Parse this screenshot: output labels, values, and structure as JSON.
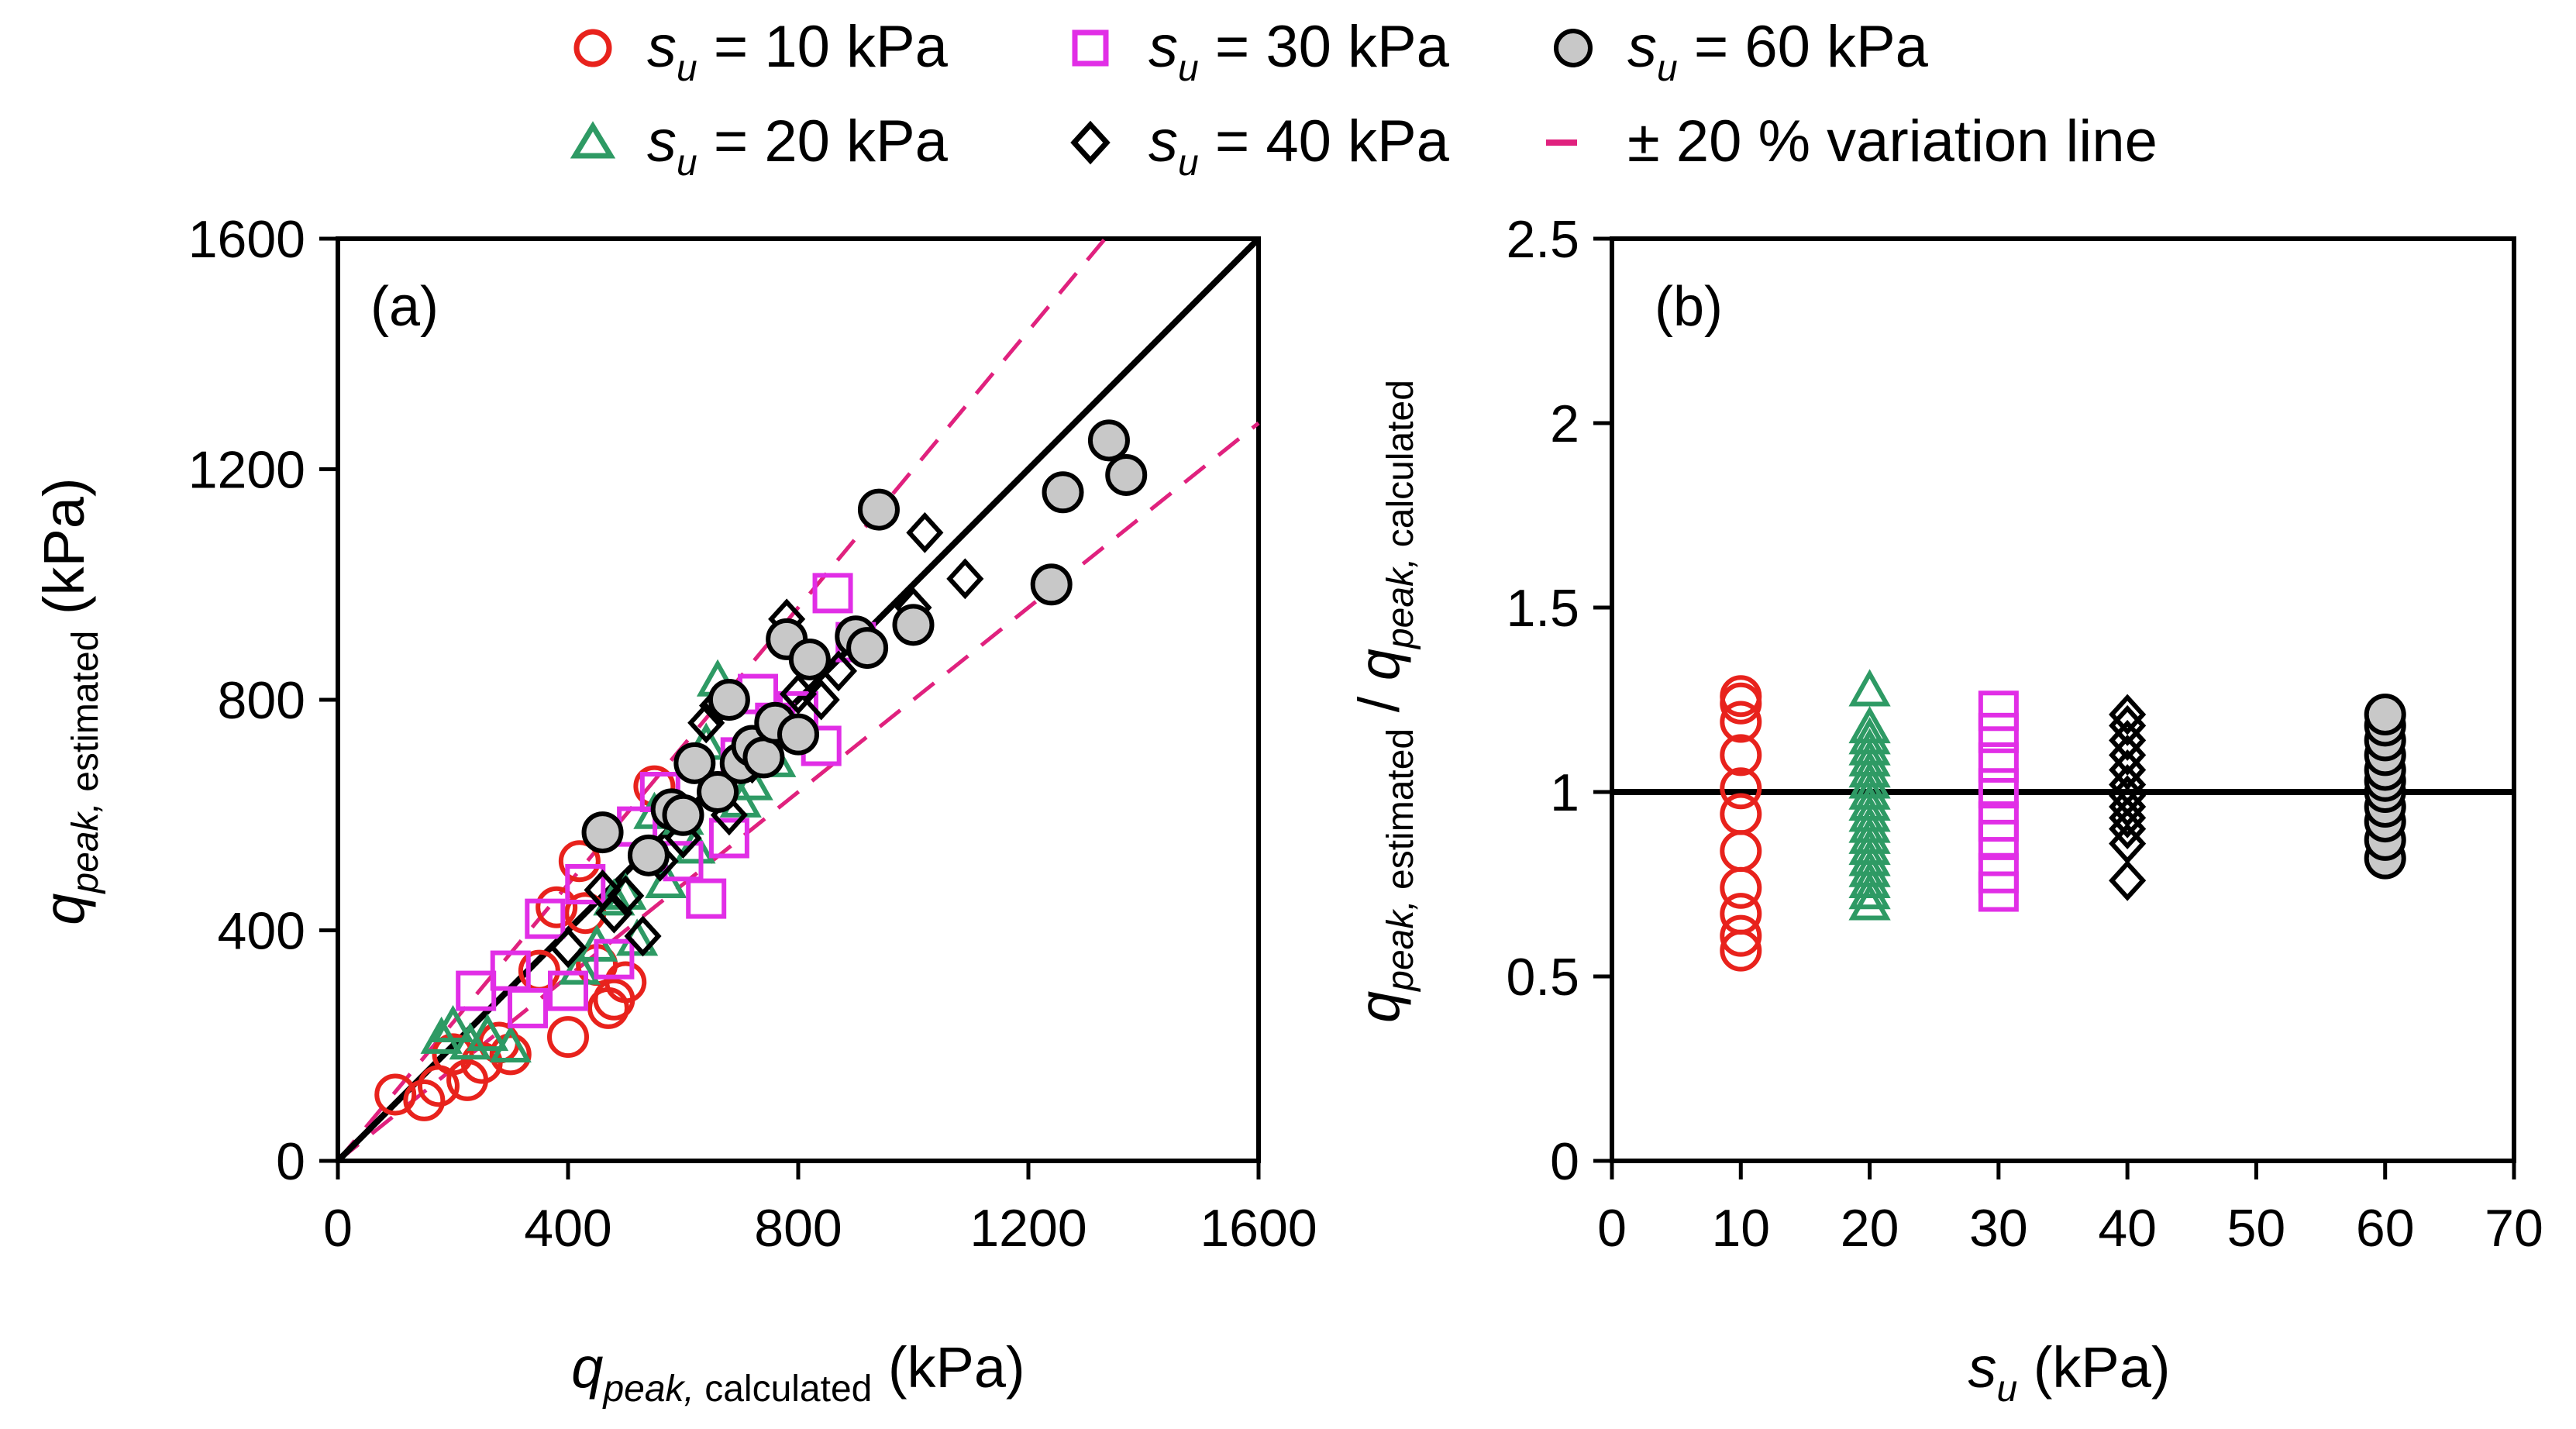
{
  "colors": {
    "s10": "#e8221c",
    "s20": "#2e9a64",
    "s30": "#e12ee6",
    "s40": "#000000",
    "s60_fill": "#c8c8c8",
    "s60_edge": "#000000",
    "variation": "#e0217e",
    "unity": "#000000"
  },
  "legend": {
    "s10": {
      "sym": "s",
      "sub": "u",
      "rest": " = 10 kPa",
      "marker": "circle-open-red"
    },
    "s30": {
      "sym": "s",
      "sub": "u",
      "rest": " = 30 kPa",
      "marker": "square-open-magenta"
    },
    "s60": {
      "sym": "s",
      "sub": "u",
      "rest": " = 60 kPa",
      "marker": "circle-filled-gray"
    },
    "s20": {
      "sym": "s",
      "sub": "u",
      "rest": " = 20 kPa",
      "marker": "triangle-open-green"
    },
    "s40": {
      "sym": "s",
      "sub": "u",
      "rest": " = 40 kPa",
      "marker": "diamond-open-black"
    },
    "variation": {
      "text": "± 20 % variation line",
      "marker": "dash-magenta"
    }
  },
  "chart_data": [
    {
      "panel": "(a)",
      "type": "scatter",
      "xlabel": {
        "q": "q",
        "sub": "peak, ",
        "subsmall": "calculated",
        "unit": " (kPa)"
      },
      "ylabel": {
        "q": "q",
        "sub": "peak, ",
        "subsmall": "estimated",
        "unit": " (kPa)"
      },
      "xlim": [
        0,
        1600
      ],
      "ylim": [
        0,
        1600
      ],
      "xticks": [
        "0",
        "400",
        "800",
        "1200",
        "1600"
      ],
      "yticks": [
        "0",
        "400",
        "800",
        "1200",
        "1600"
      ],
      "lines": {
        "unity": [
          [
            0,
            0
          ],
          [
            1600,
            1600
          ]
        ],
        "upper_factor": 1.2,
        "lower_factor": 0.8
      },
      "series": [
        {
          "name": "su = 10 kPa",
          "marker": "circle-open-red",
          "x": [
            100,
            150,
            175,
            200,
            225,
            250,
            280,
            300,
            350,
            380,
            400,
            420,
            430,
            450,
            470,
            480,
            500,
            550
          ],
          "y": [
            115,
            105,
            130,
            185,
            140,
            170,
            205,
            185,
            330,
            440,
            215,
            520,
            430,
            340,
            265,
            280,
            310,
            650
          ]
        },
        {
          "name": "su = 20 kPa",
          "marker": "triangle-open-green",
          "x": [
            180,
            200,
            230,
            260,
            300,
            420,
            450,
            480,
            500,
            520,
            550,
            570,
            600,
            620,
            640,
            660,
            700,
            720,
            760
          ],
          "y": [
            210,
            230,
            200,
            215,
            195,
            330,
            370,
            450,
            460,
            380,
            600,
            480,
            590,
            540,
            720,
            830,
            620,
            650,
            690
          ]
        },
        {
          "name": "su = 30 kPa",
          "marker": "square-open-magenta",
          "x": [
            240,
            300,
            330,
            360,
            400,
            430,
            480,
            520,
            560,
            600,
            640,
            680,
            700,
            730,
            760,
            800,
            840,
            860,
            900
          ],
          "y": [
            295,
            330,
            265,
            420,
            295,
            480,
            350,
            580,
            640,
            520,
            455,
            560,
            700,
            810,
            760,
            780,
            720,
            985,
            900
          ]
        },
        {
          "name": "su = 40 kPa",
          "marker": "diamond-open-black",
          "x": [
            400,
            460,
            480,
            500,
            530,
            560,
            600,
            640,
            660,
            680,
            700,
            720,
            780,
            800,
            840,
            870,
            1000,
            1020,
            1090
          ],
          "y": [
            370,
            470,
            430,
            460,
            390,
            520,
            560,
            760,
            790,
            600,
            700,
            690,
            940,
            810,
            800,
            850,
            960,
            1090,
            1010
          ]
        },
        {
          "name": "su = 60 kPa",
          "marker": "circle-filled-gray",
          "x": [
            460,
            540,
            580,
            600,
            620,
            660,
            680,
            700,
            720,
            740,
            760,
            780,
            800,
            820,
            900,
            920,
            940,
            1000,
            1240,
            1260,
            1340,
            1370
          ],
          "y": [
            570,
            530,
            610,
            600,
            690,
            640,
            800,
            690,
            720,
            700,
            760,
            905,
            740,
            870,
            910,
            890,
            1130,
            930,
            1000,
            1160,
            1250,
            1190
          ]
        }
      ]
    },
    {
      "panel": "(b)",
      "type": "scatter",
      "xlabel": {
        "sym": "s",
        "sub": "u",
        "unit": " (kPa)"
      },
      "ylabel": {
        "q1": "q",
        "sub1": "peak, ",
        "small1": "estimated",
        "slash": " / ",
        "q2": "q",
        "sub2": "peak, ",
        "small2": "calculated"
      },
      "xlim": [
        0,
        70
      ],
      "ylim": [
        0,
        2.5
      ],
      "xticks": [
        "0",
        "10",
        "20",
        "30",
        "40",
        "50",
        "60",
        "70"
      ],
      "yticks": [
        "0",
        "0.5",
        "1",
        "1.5",
        "2",
        "2.5"
      ],
      "reference_y": 1,
      "series": [
        {
          "name": "su = 10 kPa",
          "marker": "circle-open-red",
          "x": 10,
          "y": [
            0.57,
            0.61,
            0.67,
            0.74,
            0.84,
            0.94,
            1.01,
            1.1,
            1.19,
            1.24,
            1.26
          ]
        },
        {
          "name": "su = 20 kPa",
          "marker": "triangle-open-green",
          "x": 20,
          "y": [
            0.69,
            0.72,
            0.75,
            0.78,
            0.81,
            0.84,
            0.87,
            0.9,
            0.93,
            0.96,
            0.99,
            1.02,
            1.05,
            1.08,
            1.11,
            1.14,
            1.17,
            1.27
          ]
        },
        {
          "name": "su = 30 kPa",
          "marker": "square-open-magenta",
          "x": 30,
          "y": [
            0.73,
            0.78,
            0.87,
            0.92,
            1.01,
            1.08,
            1.16,
            1.22
          ]
        },
        {
          "name": "su = 40 kPa",
          "marker": "diamond-open-black",
          "x": 40,
          "y": [
            0.76,
            0.86,
            0.9,
            0.93,
            0.96,
            0.99,
            1.02,
            1.06,
            1.1,
            1.14,
            1.18,
            1.21
          ]
        },
        {
          "name": "su = 60 kPa",
          "marker": "circle-filled-gray",
          "x": 60,
          "y": [
            0.82,
            0.87,
            0.92,
            0.96,
            1.0,
            1.03,
            1.06,
            1.1,
            1.14,
            1.18,
            1.21
          ]
        }
      ]
    }
  ]
}
